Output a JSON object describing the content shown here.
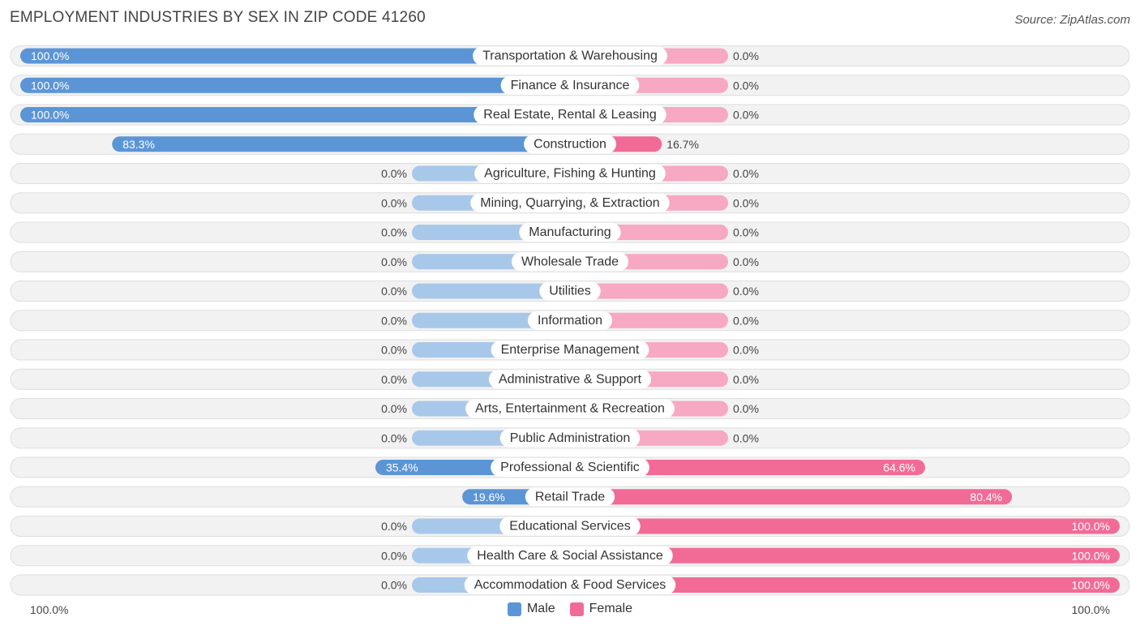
{
  "title": "EMPLOYMENT INDUSTRIES BY SEX IN ZIP CODE 41260",
  "source": "Source: ZipAtlas.com",
  "colors": {
    "male_full": "#5b95d6",
    "male_light": "#a8c8ea",
    "female_full": "#f26b96",
    "female_light": "#f7a8c2",
    "row_bg": "#f2f2f2",
    "row_border": "#dedede"
  },
  "legend": {
    "male": "Male",
    "female": "Female"
  },
  "axis": {
    "left": "100.0%",
    "right": "100.0%"
  },
  "chart_data": {
    "type": "bar",
    "orientation": "horizontal-diverging",
    "categories": [
      "Transportation & Warehousing",
      "Finance & Insurance",
      "Real Estate, Rental & Leasing",
      "Construction",
      "Agriculture, Fishing & Hunting",
      "Mining, Quarrying, & Extraction",
      "Manufacturing",
      "Wholesale Trade",
      "Utilities",
      "Information",
      "Enterprise Management",
      "Administrative & Support",
      "Arts, Entertainment & Recreation",
      "Public Administration",
      "Professional & Scientific",
      "Retail Trade",
      "Educational Services",
      "Health Care & Social Assistance",
      "Accommodation & Food Services"
    ],
    "series": [
      {
        "name": "Male",
        "values": [
          100.0,
          100.0,
          100.0,
          83.3,
          0.0,
          0.0,
          0.0,
          0.0,
          0.0,
          0.0,
          0.0,
          0.0,
          0.0,
          0.0,
          35.4,
          19.6,
          0.0,
          0.0,
          0.0
        ],
        "labels": [
          "100.0%",
          "100.0%",
          "100.0%",
          "83.3%",
          "0.0%",
          "0.0%",
          "0.0%",
          "0.0%",
          "0.0%",
          "0.0%",
          "0.0%",
          "0.0%",
          "0.0%",
          "0.0%",
          "35.4%",
          "19.6%",
          "0.0%",
          "0.0%",
          "0.0%"
        ]
      },
      {
        "name": "Female",
        "values": [
          0.0,
          0.0,
          0.0,
          16.7,
          0.0,
          0.0,
          0.0,
          0.0,
          0.0,
          0.0,
          0.0,
          0.0,
          0.0,
          0.0,
          64.6,
          80.4,
          100.0,
          100.0,
          100.0
        ],
        "labels": [
          "0.0%",
          "0.0%",
          "0.0%",
          "16.7%",
          "0.0%",
          "0.0%",
          "0.0%",
          "0.0%",
          "0.0%",
          "0.0%",
          "0.0%",
          "0.0%",
          "0.0%",
          "0.0%",
          "64.6%",
          "80.4%",
          "100.0%",
          "100.0%",
          "100.0%"
        ]
      }
    ],
    "xlim": [
      -100,
      100
    ],
    "legend_position": "bottom-center"
  }
}
